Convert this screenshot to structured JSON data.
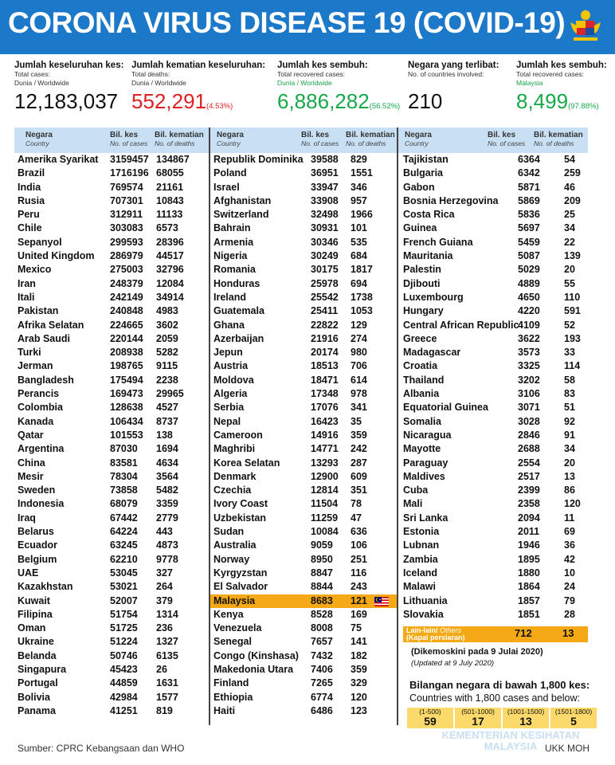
{
  "title": "CORONA VIRUS DISEASE 19 (COVID-19)",
  "stats": [
    {
      "label": "Jumlah keseluruhan kes:",
      "sub1": "Total cases:",
      "sub2": "Dunia / Worldwide",
      "value": "12,183,037",
      "pct": ""
    },
    {
      "label": "Jumlah kematian keseluruhan:",
      "sub1": "Total deaths:",
      "sub2": "Dunia / Worldwide",
      "value": "552,291",
      "pct": "(4.53%)"
    },
    {
      "label": "Jumlah kes sembuh:",
      "sub1": "Total recovered cases:",
      "sub2": "Dunia / Worldwide",
      "value": "6,886,282",
      "pct": "(56.52%)"
    },
    {
      "label": "Negara yang terlibat:",
      "sub1": "No. of countries involved:",
      "sub2": "",
      "value": "210",
      "pct": ""
    },
    {
      "label": "Jumlah kes sembuh:",
      "sub1": "Total recovered cases:",
      "sub2": "Malaysia",
      "value": "8,499",
      "pct": "(97.88%)"
    }
  ],
  "table_header": {
    "country": "Negara",
    "country_en": "Country",
    "cases": "Bil. kes",
    "cases_en": "No. of cases",
    "deaths": "Bil. kematian",
    "deaths_en": "No. of deaths"
  },
  "columns": [
    [
      [
        "Amerika Syarikat",
        "3159457",
        "134867"
      ],
      [
        "Brazil",
        "1716196",
        "68055"
      ],
      [
        "India",
        "769574",
        "21161"
      ],
      [
        "Rusia",
        "707301",
        "10843"
      ],
      [
        "Peru",
        "312911",
        "11133"
      ],
      [
        "Chile",
        "303083",
        "6573"
      ],
      [
        "Sepanyol",
        "299593",
        "28396"
      ],
      [
        "United Kingdom",
        "286979",
        "44517"
      ],
      [
        "Mexico",
        "275003",
        "32796"
      ],
      [
        "Iran",
        "248379",
        "12084"
      ],
      [
        "Itali",
        "242149",
        "34914"
      ],
      [
        "Pakistan",
        "240848",
        "4983"
      ],
      [
        "Afrika Selatan",
        "224665",
        "3602"
      ],
      [
        "Arab Saudi",
        "220144",
        "2059"
      ],
      [
        "Turki",
        "208938",
        "5282"
      ],
      [
        "Jerman",
        "198765",
        "9115"
      ],
      [
        "Bangladesh",
        "175494",
        "2238"
      ],
      [
        "Perancis",
        "169473",
        "29965"
      ],
      [
        "Colombia",
        "128638",
        "4527"
      ],
      [
        "Kanada",
        "106434",
        "8737"
      ],
      [
        "Qatar",
        "101553",
        "138"
      ],
      [
        "Argentina",
        "87030",
        "1694"
      ],
      [
        "China",
        "83581",
        "4634"
      ],
      [
        "Mesir",
        "78304",
        "3564"
      ],
      [
        "Sweden",
        "73858",
        "5482"
      ],
      [
        "Indonesia",
        "68079",
        "3359"
      ],
      [
        "Iraq",
        "67442",
        "2779"
      ],
      [
        "Belarus",
        "64224",
        "443"
      ],
      [
        "Ecuador",
        "63245",
        "4873"
      ],
      [
        "Belgium",
        "62210",
        "9778"
      ],
      [
        "UAE",
        "53045",
        "327"
      ],
      [
        "Kazakhstan",
        "53021",
        "264"
      ],
      [
        "Kuwait",
        "52007",
        "379"
      ],
      [
        "Filipina",
        "51754",
        "1314"
      ],
      [
        "Oman",
        "51725",
        "236"
      ],
      [
        "Ukraine",
        "51224",
        "1327"
      ],
      [
        "Belanda",
        "50746",
        "6135"
      ],
      [
        "Singapura",
        "45423",
        "26"
      ],
      [
        "Portugal",
        "44859",
        "1631"
      ],
      [
        "Bolivia",
        "42984",
        "1577"
      ],
      [
        "Panama",
        "41251",
        "819"
      ]
    ],
    [
      [
        "Republik Dominika",
        "39588",
        "829"
      ],
      [
        "Poland",
        "36951",
        "1551"
      ],
      [
        "Israel",
        "33947",
        "346"
      ],
      [
        "Afghanistan",
        "33908",
        "957"
      ],
      [
        "Switzerland",
        "32498",
        "1966"
      ],
      [
        "Bahrain",
        "30931",
        "101"
      ],
      [
        "Armenia",
        "30346",
        "535"
      ],
      [
        "Nigeria",
        "30249",
        "684"
      ],
      [
        "Romania",
        "30175",
        "1817"
      ],
      [
        "Honduras",
        "25978",
        "694"
      ],
      [
        "Ireland",
        "25542",
        "1738"
      ],
      [
        "Guatemala",
        "25411",
        "1053"
      ],
      [
        "Ghana",
        "22822",
        "129"
      ],
      [
        "Azerbaijan",
        "21916",
        "274"
      ],
      [
        "Jepun",
        "20174",
        "980"
      ],
      [
        "Austria",
        "18513",
        "706"
      ],
      [
        "Moldova",
        "18471",
        "614"
      ],
      [
        "Algeria",
        "17348",
        "978"
      ],
      [
        "Serbia",
        "17076",
        "341"
      ],
      [
        "Nepal",
        "16423",
        "35"
      ],
      [
        "Cameroon",
        "14916",
        "359"
      ],
      [
        "Maghribi",
        "14771",
        "242"
      ],
      [
        "Korea Selatan",
        "13293",
        "287"
      ],
      [
        "Denmark",
        "12900",
        "609"
      ],
      [
        "Czechia",
        "12814",
        "351"
      ],
      [
        "Ivory Coast",
        "11504",
        "78"
      ],
      [
        "Uzbekistan",
        "11259",
        "47"
      ],
      [
        "Sudan",
        "10084",
        "636"
      ],
      [
        "Australia",
        "9059",
        "106"
      ],
      [
        "Norway",
        "8950",
        "251"
      ],
      [
        "Kyrgyzstan",
        "8847",
        "116"
      ],
      [
        "El Salvador",
        "8844",
        "243"
      ],
      [
        "Malaysia",
        "8683",
        "121"
      ],
      [
        "Kenya",
        "8528",
        "169"
      ],
      [
        "Venezuela",
        "8008",
        "75"
      ],
      [
        "Senegal",
        "7657",
        "141"
      ],
      [
        "Congo (Kinshasa)",
        "7432",
        "182"
      ],
      [
        "Makedonia Utara",
        "7406",
        "359"
      ],
      [
        "Finland",
        "7265",
        "329"
      ],
      [
        "Ethiopia",
        "6774",
        "120"
      ],
      [
        "Haiti",
        "6486",
        "123"
      ]
    ],
    [
      [
        "Tajikistan",
        "6364",
        "54"
      ],
      [
        "Bulgaria",
        "6342",
        "259"
      ],
      [
        "Gabon",
        "5871",
        "46"
      ],
      [
        "Bosnia Herzegovina",
        "5869",
        "209"
      ],
      [
        "Costa Rica",
        "5836",
        "25"
      ],
      [
        "Guinea",
        "5697",
        "34"
      ],
      [
        "French Guiana",
        "5459",
        "22"
      ],
      [
        "Mauritania",
        "5087",
        "139"
      ],
      [
        "Palestin",
        "5029",
        "20"
      ],
      [
        "Djibouti",
        "4889",
        "55"
      ],
      [
        "Luxembourg",
        "4650",
        "110"
      ],
      [
        "Hungary",
        "4220",
        "591"
      ],
      [
        "Central African Republic",
        "4109",
        "52"
      ],
      [
        "Greece",
        "3622",
        "193"
      ],
      [
        "Madagascar",
        "3573",
        "33"
      ],
      [
        "Croatia",
        "3325",
        "114"
      ],
      [
        "Thailand",
        "3202",
        "58"
      ],
      [
        "Albania",
        "3106",
        "83"
      ],
      [
        "Equatorial Guinea",
        "3071",
        "51"
      ],
      [
        "Somalia",
        "3028",
        "92"
      ],
      [
        "Nicaragua",
        "2846",
        "91"
      ],
      [
        "Mayotte",
        "2688",
        "34"
      ],
      [
        "Paraguay",
        "2554",
        "20"
      ],
      [
        "Maldives",
        "2517",
        "13"
      ],
      [
        "Cuba",
        "2399",
        "86"
      ],
      [
        "Mali",
        "2358",
        "120"
      ],
      [
        "Sri Lanka",
        "2094",
        "11"
      ],
      [
        "Estonia",
        "2011",
        "69"
      ],
      [
        "Lubnan",
        "1946",
        "36"
      ],
      [
        "Zambia",
        "1895",
        "42"
      ],
      [
        "Iceland",
        "1880",
        "10"
      ],
      [
        "Malawi",
        "1864",
        "24"
      ],
      [
        "Lithuania",
        "1857",
        "79"
      ],
      [
        "Slovakia",
        "1851",
        "28"
      ]
    ]
  ],
  "others": {
    "label": "Lain-lain/",
    "label_en": "Others",
    "note": "(Kapal persiaran)",
    "cases": "712",
    "deaths": "13"
  },
  "updated": {
    "ms": "(Dikemoskini pada 9 Julai 2020)",
    "en": "(Updated at 9 July 2020)"
  },
  "below": {
    "ms": "Bilangan negara di bawah 1,800 kes:",
    "en": "Countries with 1,800 cases and below:"
  },
  "buckets": [
    {
      "range": "(1-500)",
      "count": "59"
    },
    {
      "range": "(501-1000)",
      "count": "17"
    },
    {
      "range": "(1001-1500)",
      "count": "13"
    },
    {
      "range": "(1501-1800)",
      "count": "5"
    }
  ],
  "watermark": {
    "line1": "KEMENTERIAN KESIHATAN",
    "line2": "MALAYSIA"
  },
  "source": "Sumber: CPRC Kebangsaan dan WHO",
  "credit": "UKK MOH",
  "highlight_country": "Malaysia",
  "colors": {
    "header_bg": "#1c78c8",
    "table_head": "#c9e0f4",
    "highlight": "#f6a917",
    "death_red": "#e02020",
    "recovered_green": "#18a84a",
    "bucket_bg": "#fbd96a"
  }
}
